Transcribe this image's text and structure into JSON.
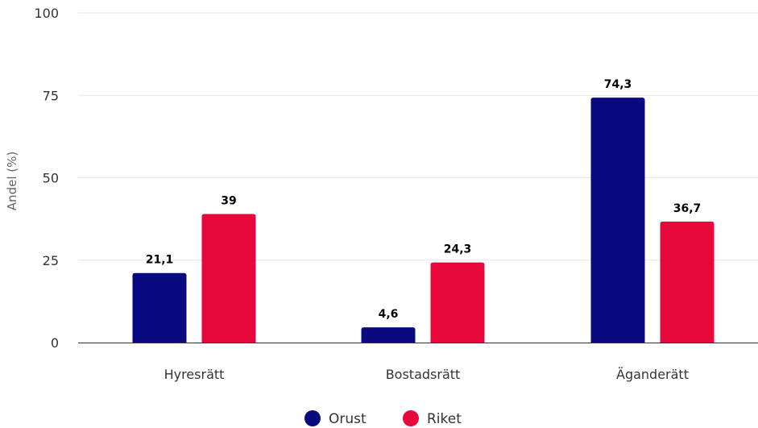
{
  "chart_data": {
    "type": "bar",
    "title": "",
    "xlabel": "",
    "ylabel": "Andel (%)",
    "ylim": [
      0,
      100
    ],
    "yticks": [
      0,
      25,
      50,
      75,
      100
    ],
    "categories": [
      "Hyresrätt",
      "Bostadsrätt",
      "Äganderätt"
    ],
    "series": [
      {
        "name": "Orust",
        "color": "#0a0a80",
        "values": [
          21.1,
          4.6,
          74.3
        ],
        "labels": [
          "21,1",
          "4,6",
          "74,3"
        ]
      },
      {
        "name": "Riket",
        "color": "#e8073a",
        "values": [
          39,
          24.3,
          36.7
        ],
        "labels": [
          "39",
          "24,3",
          "36,7"
        ]
      }
    ],
    "grid": true,
    "legend_position": "bottom"
  }
}
